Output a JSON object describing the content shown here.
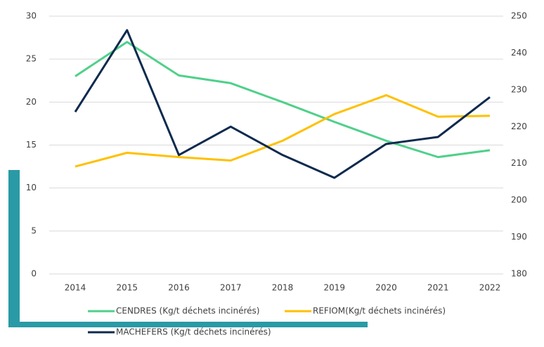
{
  "chart_data": {
    "type": "line",
    "categories": [
      "2014",
      "2015",
      "2016",
      "2017",
      "2018",
      "2019",
      "2020",
      "2021",
      "2022"
    ],
    "series": [
      {
        "name": "CENDRES (Kg/t déchets incinérés)",
        "color": "#4fd08a",
        "values": [
          23,
          27,
          23.1,
          22.2,
          20,
          17.7,
          15.5,
          13.6,
          14.4
        ]
      },
      {
        "name": "REFIOM(Kg/t déchets incinérés)",
        "color": "#ffc000",
        "values": [
          12.5,
          14.1,
          13.6,
          13.2,
          15.5,
          18.6,
          20.8,
          18.3,
          18.4
        ]
      },
      {
        "name": "MACHEFERS (Kg/t déchets incinérés)",
        "color": "#0d2a4e",
        "axis": "y2",
        "values": [
          224,
          246.2,
          212.3,
          220,
          212.3,
          206.1,
          215.3,
          217.2,
          228
        ]
      }
    ],
    "ylim": [
      0,
      30
    ],
    "yticks": [
      0,
      5,
      10,
      15,
      20,
      25,
      30
    ],
    "y2lim": [
      180,
      250
    ],
    "y2ticks": [
      180,
      190,
      200,
      210,
      220,
      230,
      240,
      250
    ],
    "grid": true,
    "legend": "bottom"
  }
}
